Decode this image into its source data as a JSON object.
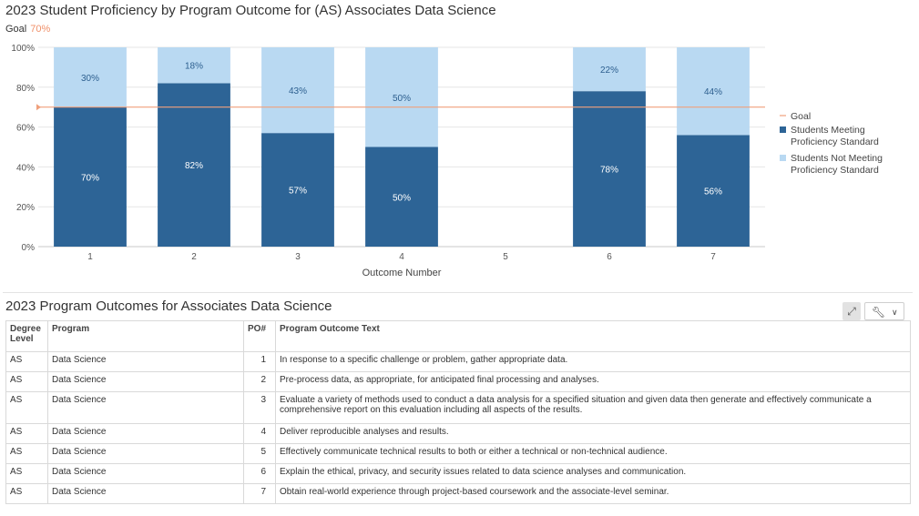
{
  "chart": {
    "title": "2023 Student Proficiency by Program Outcome for (AS) Associates Data Science",
    "goal_label": "Goal",
    "goal_value_label": "70%"
  },
  "chart_data": {
    "type": "bar",
    "stacked": true,
    "categories": [
      "1",
      "2",
      "3",
      "4",
      "5",
      "6",
      "7"
    ],
    "series": [
      {
        "name": "Students Meeting Proficiency Standard",
        "values": [
          70,
          82,
          57,
          50,
          0,
          78,
          56
        ],
        "labels": [
          "70%",
          "82%",
          "57%",
          "50%",
          "",
          "78%",
          "56%"
        ],
        "color": "#2d6496"
      },
      {
        "name": "Students Not Meeting Proficiency Standard",
        "values": [
          30,
          18,
          43,
          50,
          0,
          22,
          44
        ],
        "labels": [
          "30%",
          "18%",
          "43%",
          "50%",
          "",
          "22%",
          "44%"
        ],
        "color": "#b9d9f2"
      }
    ],
    "goal": {
      "name": "Goal",
      "value": 70,
      "color": "#f0a07c"
    },
    "xlabel": "Outcome Number",
    "ylabel": "",
    "ylim": [
      0,
      100
    ],
    "yticks": [
      "0%",
      "20%",
      "40%",
      "60%",
      "80%",
      "100%"
    ],
    "grid": true,
    "legend_position": "right"
  },
  "table": {
    "title": "2023 Program Outcomes for Associates Data Science",
    "expand_icon": "expand-icon",
    "tools_icon": "wrench-icon",
    "headers": {
      "degree": "Degree Level",
      "program": "Program",
      "po": "PO#",
      "text": "Program Outcome Text"
    },
    "rows": [
      {
        "degree": "AS",
        "program": "Data Science",
        "po": "1",
        "text": "In response to a specific challenge or problem, gather appropriate data."
      },
      {
        "degree": "AS",
        "program": "Data Science",
        "po": "2",
        "text": "Pre-process data, as appropriate, for anticipated final processing and analyses."
      },
      {
        "degree": "AS",
        "program": "Data Science",
        "po": "3",
        "text": "Evaluate a variety of methods used to conduct a data analysis for a specified situation and given data then generate and effectively communicate a comprehensive report on this evaluation including all aspects of the results."
      },
      {
        "degree": "AS",
        "program": "Data Science",
        "po": "4",
        "text": "Deliver reproducible analyses and results."
      },
      {
        "degree": "AS",
        "program": "Data Science",
        "po": "5",
        "text": "Effectively communicate technical results to both or either a technical or non-technical audience."
      },
      {
        "degree": "AS",
        "program": "Data Science",
        "po": "6",
        "text": "Explain the ethical, privacy, and security issues related to data science analyses and communication."
      },
      {
        "degree": "AS",
        "program": "Data Science",
        "po": "7",
        "text": "Obtain real-world experience through project-based coursework and the associate-level seminar."
      }
    ]
  }
}
